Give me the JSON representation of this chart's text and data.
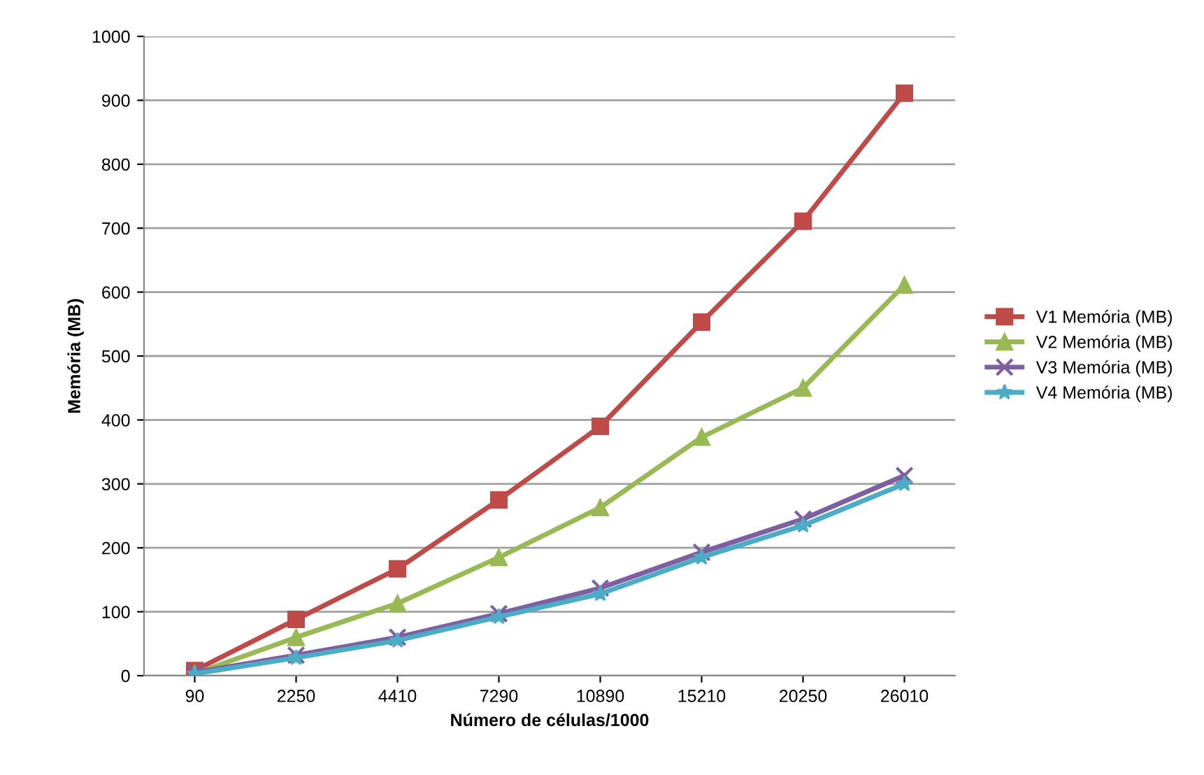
{
  "chart_data": {
    "type": "line",
    "xlabel": "Número de células/1000",
    "ylabel": "Memória (MB)",
    "categories": [
      "90",
      "2250",
      "4410",
      "7290",
      "10890",
      "15210",
      "20250",
      "26010"
    ],
    "series": [
      {
        "name": "V1 Memória (MB)",
        "color": "#be4b48",
        "marker": "square",
        "values": [
          8,
          88,
          167,
          275,
          390,
          553,
          711,
          911
        ]
      },
      {
        "name": "V2 Memória (MB)",
        "color": "#98b954",
        "marker": "triangle",
        "values": [
          3,
          60,
          113,
          185,
          263,
          373,
          450,
          611
        ]
      },
      {
        "name": "V3 Memória (MB)",
        "color": "#7d60a0",
        "marker": "cross",
        "values": [
          5,
          32,
          60,
          97,
          137,
          193,
          245,
          313
        ]
      },
      {
        "name": "V4 Memória (MB)",
        "color": "#4bacc6",
        "marker": "star",
        "values": [
          3,
          28,
          55,
          92,
          128,
          185,
          235,
          300
        ]
      }
    ],
    "ylim": [
      0,
      1000
    ],
    "yticks": [
      0,
      100,
      200,
      300,
      400,
      500,
      600,
      700,
      800,
      900,
      1000
    ],
    "grid": "y",
    "legend": "right",
    "line_style": "solid"
  }
}
